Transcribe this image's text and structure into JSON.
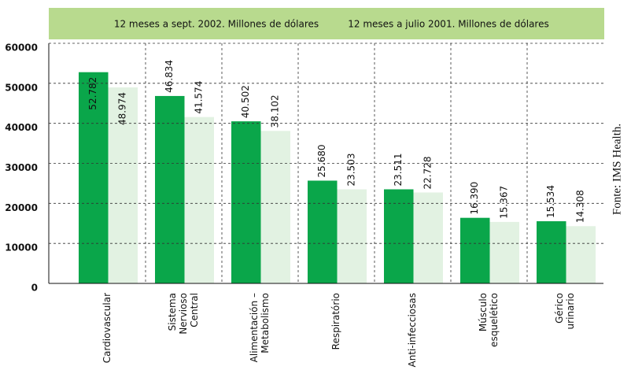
{
  "chart_data": {
    "type": "bar",
    "categories": [
      "Cardiovascular",
      "Sistema\nNervioso\nCentral",
      "Alimentación –\nMetabolismo",
      "Respiratório",
      "Anti-infecciosas",
      "Músculo\nesquelético",
      "Gérico\nurinario"
    ],
    "series": [
      {
        "name": "12 meses a sept. 2002. Millones de dólares",
        "color": "#0aa64a",
        "values": [
          52782,
          46834,
          40502,
          25680,
          23511,
          16390,
          15534
        ],
        "value_labels": [
          "52.782",
          "46.834",
          "40.502",
          "25.680",
          "23.511",
          "16.390",
          "15.534"
        ]
      },
      {
        "name": "12 meses a julio 2001. Millones de dólares",
        "color": "#e2f2e2",
        "values": [
          48974,
          41574,
          38102,
          23503,
          22728,
          15367,
          14308
        ],
        "value_labels": [
          "48.974",
          "41.574",
          "38.102",
          "23.503",
          "22.728",
          "15.367",
          "14.308"
        ]
      }
    ],
    "ylim": [
      0,
      60000
    ],
    "yticks": [
      0,
      10000,
      20000,
      30000,
      40000,
      50000,
      60000
    ],
    "grid": true,
    "source": "Fonte: IMS Health."
  }
}
